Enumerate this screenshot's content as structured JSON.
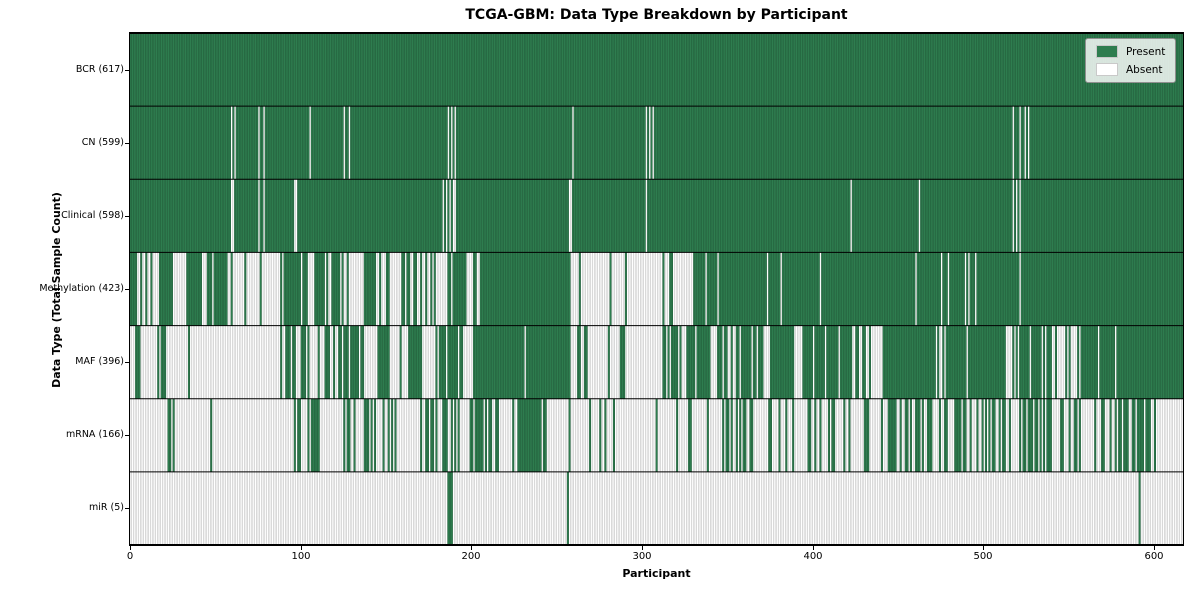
{
  "chart_data": {
    "type": "heatmap",
    "title": "TCGA-GBM: Data Type Breakdown by Participant",
    "xlabel": "Participant",
    "ylabel": "Data Type (Total Sample Count)",
    "n_participants": 617,
    "x_range": [
      0,
      617
    ],
    "xticks": [
      0,
      100,
      200,
      300,
      400,
      500,
      600
    ],
    "grid": false,
    "legend_position": "upper right",
    "colors": {
      "present": "#2e7d4f",
      "absent": "#ffffff",
      "bar_edge": "rgba(0,0,0,0.38)",
      "row_separator": "#000000"
    },
    "legend": [
      {
        "label": "Present",
        "color": "#2e7d4f"
      },
      {
        "label": "Absent",
        "color": "#ffffff"
      }
    ],
    "rows": [
      {
        "label": "BCR",
        "total": 617,
        "label_display": "BCR (617)",
        "segments": [
          [
            0,
            617,
            1
          ]
        ]
      },
      {
        "label": "CN",
        "total": 599,
        "label_display": "CN (599)",
        "segments": [
          [
            0,
            617,
            1
          ],
          [
            59,
            60,
            0
          ],
          [
            61,
            62,
            0
          ],
          [
            75,
            76,
            0
          ],
          [
            78,
            79,
            0
          ],
          [
            105,
            106,
            0
          ],
          [
            125,
            126,
            0
          ],
          [
            128,
            129,
            0
          ],
          [
            186,
            187,
            0
          ],
          [
            188,
            189,
            0
          ],
          [
            190,
            191,
            0
          ],
          [
            259,
            260,
            0
          ],
          [
            302,
            303,
            0
          ],
          [
            304,
            305,
            0
          ],
          [
            306,
            307,
            0
          ],
          [
            517,
            518,
            0
          ],
          [
            521,
            522,
            0
          ],
          [
            524,
            525,
            0
          ],
          [
            526,
            527,
            0
          ]
        ]
      },
      {
        "label": "Clinical",
        "total": 598,
        "label_display": "Clinical (598)",
        "segments": [
          [
            0,
            617,
            1
          ],
          [
            59,
            60,
            0
          ],
          [
            60,
            61,
            0
          ],
          [
            75,
            76,
            0
          ],
          [
            78,
            79,
            0
          ],
          [
            96,
            97,
            0
          ],
          [
            97,
            98,
            0
          ],
          [
            183,
            184,
            0
          ],
          [
            185,
            186,
            0
          ],
          [
            187,
            188,
            0
          ],
          [
            189,
            190,
            0
          ],
          [
            190,
            191,
            0
          ],
          [
            257,
            258,
            0
          ],
          [
            258,
            259,
            0
          ],
          [
            302,
            303,
            0
          ],
          [
            422,
            423,
            0
          ],
          [
            462,
            463,
            0
          ],
          [
            517,
            518,
            0
          ],
          [
            519,
            520,
            0
          ],
          [
            521,
            522,
            0
          ]
        ]
      },
      {
        "label": "Methylation",
        "total": 423,
        "label_display": "Methylation (423)",
        "segments": [
          [
            0,
            25,
            0.6
          ],
          [
            25,
            32,
            0.15
          ],
          [
            32,
            57,
            0.8
          ],
          [
            57,
            90,
            0.08
          ],
          [
            90,
            104,
            0.95
          ],
          [
            104,
            109,
            0.1
          ],
          [
            109,
            125,
            0.8
          ],
          [
            125,
            137,
            0.1
          ],
          [
            137,
            144,
            0.9
          ],
          [
            144,
            162,
            0.2
          ],
          [
            162,
            167,
            0.9
          ],
          [
            167,
            186,
            0.25
          ],
          [
            186,
            197,
            0.95
          ],
          [
            197,
            205,
            0.1
          ],
          [
            205,
            258,
            0.97
          ],
          [
            258,
            316,
            0.04
          ],
          [
            316,
            318,
            1
          ],
          [
            318,
            330,
            0.05
          ],
          [
            330,
            422,
            0.9
          ],
          [
            422,
            617,
            0.98
          ]
        ]
      },
      {
        "label": "MAF",
        "total": 396,
        "label_display": "MAF (396)",
        "segments": [
          [
            0,
            18,
            0.12
          ],
          [
            18,
            21,
            1
          ],
          [
            21,
            88,
            0.1
          ],
          [
            88,
            104,
            0.75
          ],
          [
            104,
            109,
            0.1
          ],
          [
            109,
            129,
            0.5
          ],
          [
            129,
            137,
            0.95
          ],
          [
            137,
            144,
            0.5
          ],
          [
            144,
            152,
            0.9
          ],
          [
            152,
            162,
            0.3
          ],
          [
            162,
            172,
            0.95
          ],
          [
            172,
            180,
            0.15
          ],
          [
            180,
            195,
            0.8
          ],
          [
            195,
            201,
            0.15
          ],
          [
            201,
            211,
            0.95
          ],
          [
            211,
            258,
            0.98
          ],
          [
            258,
            309,
            0.15
          ],
          [
            309,
            332,
            0.6
          ],
          [
            332,
            340,
            0.95
          ],
          [
            340,
            344,
            0.05
          ],
          [
            344,
            350,
            0.9
          ],
          [
            350,
            355,
            0.1
          ],
          [
            355,
            371,
            0.85
          ],
          [
            371,
            375,
            0.05
          ],
          [
            375,
            389,
            0.95
          ],
          [
            389,
            393,
            0.05
          ],
          [
            393,
            422,
            0.8
          ],
          [
            422,
            437,
            0.4
          ],
          [
            437,
            441,
            0.05
          ],
          [
            441,
            472,
            0.9
          ],
          [
            472,
            478,
            0.3
          ],
          [
            478,
            513,
            0.95
          ],
          [
            513,
            517,
            0.05
          ],
          [
            517,
            541,
            0.9
          ],
          [
            541,
            549,
            0.5
          ],
          [
            549,
            555,
            0.1
          ],
          [
            555,
            617,
            0.93
          ]
        ]
      },
      {
        "label": "mRNA",
        "total": 166,
        "label_display": "mRNA (166)",
        "segments": [
          [
            0,
            22,
            0.05
          ],
          [
            22,
            29,
            0.35
          ],
          [
            29,
            90,
            0.02
          ],
          [
            90,
            104,
            0.4
          ],
          [
            104,
            113,
            0.5
          ],
          [
            113,
            125,
            0.1
          ],
          [
            125,
            129,
            0.7
          ],
          [
            129,
            137,
            0.05
          ],
          [
            137,
            144,
            0.5
          ],
          [
            144,
            148,
            0.05
          ],
          [
            148,
            154,
            0.7
          ],
          [
            154,
            176,
            0.1
          ],
          [
            176,
            191,
            0.7
          ],
          [
            191,
            199,
            0.1
          ],
          [
            199,
            215,
            0.7
          ],
          [
            215,
            227,
            0.1
          ],
          [
            227,
            244,
            0.7
          ],
          [
            244,
            277,
            0.06
          ],
          [
            277,
            309,
            0.08
          ],
          [
            309,
            348,
            0.15
          ],
          [
            348,
            364,
            0.5
          ],
          [
            364,
            377,
            0.4
          ],
          [
            377,
            397,
            0.15
          ],
          [
            397,
            414,
            0.4
          ],
          [
            414,
            430,
            0.2
          ],
          [
            430,
            446,
            0.4
          ],
          [
            446,
            461,
            0.5
          ],
          [
            461,
            477,
            0.35
          ],
          [
            477,
            489,
            0.6
          ],
          [
            489,
            509,
            0.25
          ],
          [
            509,
            529,
            0.55
          ],
          [
            529,
            548,
            0.35
          ],
          [
            548,
            568,
            0.2
          ],
          [
            568,
            587,
            0.45
          ],
          [
            587,
            597,
            0.7
          ],
          [
            597,
            617,
            0.15
          ]
        ]
      },
      {
        "label": "miR",
        "total": 5,
        "label_display": "miR (5)",
        "segments": [
          [
            0,
            617,
            0
          ],
          [
            186,
            189,
            1
          ],
          [
            256,
            257,
            1
          ],
          [
            591,
            592,
            1
          ]
        ]
      }
    ]
  },
  "layout_values": {
    "row_label_tops": [
      65,
      138,
      211,
      284,
      357,
      430,
      503
    ],
    "y_tick_tops": [
      70,
      143,
      216,
      289,
      362,
      435,
      508
    ],
    "x_tick_lefts": [
      130,
      301,
      471,
      642,
      813,
      983,
      1154
    ]
  }
}
